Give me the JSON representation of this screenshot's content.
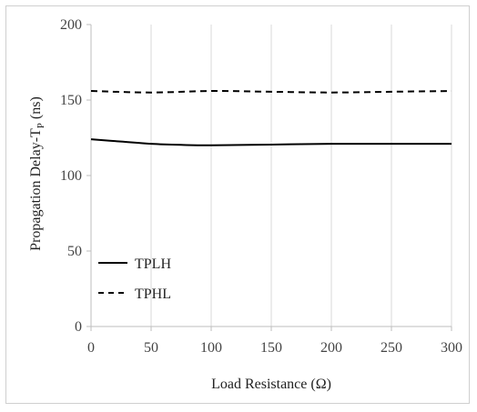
{
  "chart_data": {
    "type": "line",
    "title": "",
    "xlabel": "Load Resistance (Ω)",
    "ylabel_main": "Propagation Delay-T",
    "ylabel_sub": "P",
    "ylabel_unit": " (ns)",
    "xlim": [
      0,
      300
    ],
    "ylim": [
      0,
      200
    ],
    "x_ticks": [
      0,
      50,
      100,
      150,
      200,
      250,
      300
    ],
    "y_ticks": [
      0,
      50,
      100,
      150,
      200
    ],
    "grid": "vertical",
    "legend_position": "bottom-left",
    "series": [
      {
        "name": "TPLH",
        "style": "solid",
        "color": "#000000",
        "x": [
          0,
          25,
          50,
          75,
          100,
          150,
          200,
          250,
          300
        ],
        "y": [
          124,
          122.5,
          121,
          120.3,
          120,
          120.5,
          121,
          121,
          121
        ]
      },
      {
        "name": "TPHL",
        "style": "dashed",
        "color": "#000000",
        "x": [
          0,
          50,
          100,
          150,
          200,
          250,
          300
        ],
        "y": [
          156,
          155,
          156,
          155.5,
          155,
          155.5,
          156
        ]
      }
    ]
  }
}
